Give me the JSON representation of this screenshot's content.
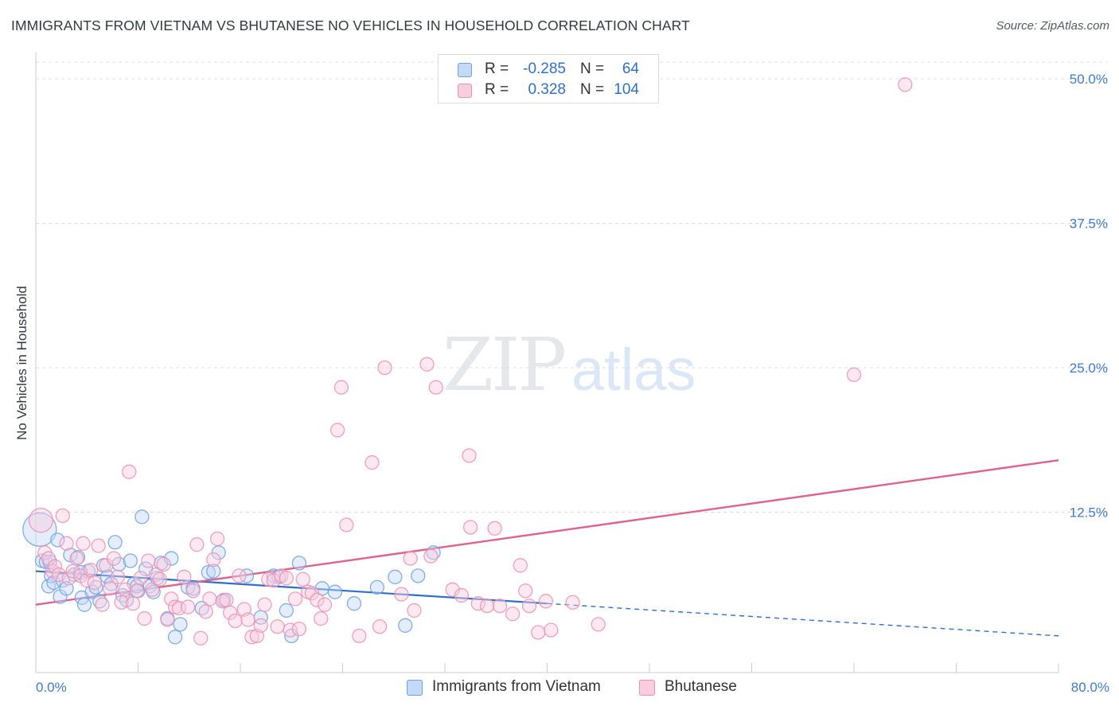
{
  "title": "IMMIGRANTS FROM VIETNAM VS BHUTANESE NO VEHICLES IN HOUSEHOLD CORRELATION CHART",
  "source": "Source: ZipAtlas.com",
  "watermark": {
    "part1": "ZIP",
    "part2": "atlas"
  },
  "legend": {
    "rows": [
      {
        "r_label": "R =",
        "r_value": "-0.285",
        "n_label": "N =",
        "n_value": "64"
      },
      {
        "r_label": "R =",
        "r_value": "0.328",
        "n_label": "N =",
        "n_value": "104"
      }
    ]
  },
  "colors": {
    "blue": "#6f9fe6",
    "blue_fill": "#c4d8f7",
    "blue_line": "#2f6fcc",
    "pink": "#ee8fb2",
    "pink_fill": "#f9cddd",
    "pink_line": "#e0628e",
    "axis_text": "#3f7ad2",
    "grid": "#d9dce2"
  },
  "chart_data": {
    "type": "scatter",
    "title": "IMMIGRANTS FROM VIETNAM VS BHUTANESE NO VEHICLES IN HOUSEHOLD CORRELATION CHART",
    "xlabel": "",
    "ylabel": "No Vehicles in Household",
    "xlim": [
      0,
      80
    ],
    "ylim": [
      0,
      52
    ],
    "x_tick_labels": [
      "0.0%",
      "80.0%"
    ],
    "y_ticks": [
      12.5,
      25.0,
      37.5,
      50.0
    ],
    "y_tick_labels": [
      "12.5%",
      "25.0%",
      "37.5%",
      "50.0%"
    ],
    "grid": "horizontal dashed",
    "legend_position": "bottom",
    "series": [
      {
        "name": "Immigrants from Vietnam",
        "color": "blue",
        "trend": {
          "x0": 0,
          "y0": 7.4,
          "x1": 40,
          "y1": 4.6,
          "dashed_to_x": 80,
          "dashed_to_y": 1.8
        },
        "points": [
          [
            0.3,
            11.0
          ],
          [
            0.5,
            8.3
          ],
          [
            0.8,
            8.2
          ],
          [
            1.0,
            6.1
          ],
          [
            1.2,
            7.0
          ],
          [
            1.4,
            6.4
          ],
          [
            1.7,
            10.1
          ],
          [
            1.9,
            5.2
          ],
          [
            2.1,
            6.6
          ],
          [
            2.4,
            5.9
          ],
          [
            2.7,
            8.8
          ],
          [
            3.0,
            7.1
          ],
          [
            3.3,
            8.6
          ],
          [
            3.6,
            5.1
          ],
          [
            3.8,
            4.5
          ],
          [
            4.1,
            7.4
          ],
          [
            4.4,
            5.6
          ],
          [
            4.7,
            6.0
          ],
          [
            5.0,
            4.8
          ],
          [
            5.3,
            7.9
          ],
          [
            5.6,
            6.9
          ],
          [
            5.9,
            6.3
          ],
          [
            6.2,
            9.9
          ],
          [
            6.5,
            8.0
          ],
          [
            6.8,
            5.3
          ],
          [
            7.1,
            4.9
          ],
          [
            7.4,
            8.3
          ],
          [
            7.7,
            6.3
          ],
          [
            8.0,
            5.7
          ],
          [
            8.3,
            12.1
          ],
          [
            8.6,
            7.6
          ],
          [
            8.9,
            6.1
          ],
          [
            9.2,
            5.6
          ],
          [
            9.5,
            6.8
          ],
          [
            9.8,
            8.1
          ],
          [
            10.3,
            3.3
          ],
          [
            10.6,
            8.5
          ],
          [
            10.9,
            1.7
          ],
          [
            11.3,
            2.8
          ],
          [
            11.9,
            6.0
          ],
          [
            12.3,
            5.9
          ],
          [
            13.0,
            4.2
          ],
          [
            13.5,
            7.3
          ],
          [
            13.9,
            7.4
          ],
          [
            14.3,
            9.0
          ],
          [
            14.7,
            4.9
          ],
          [
            16.5,
            7.0
          ],
          [
            17.6,
            3.4
          ],
          [
            18.6,
            7.0
          ],
          [
            19.0,
            6.9
          ],
          [
            19.6,
            4.0
          ],
          [
            20.0,
            1.8
          ],
          [
            20.6,
            8.1
          ],
          [
            22.4,
            5.9
          ],
          [
            23.4,
            5.6
          ],
          [
            24.9,
            4.6
          ],
          [
            26.7,
            6.0
          ],
          [
            28.1,
            6.9
          ],
          [
            28.9,
            2.7
          ],
          [
            29.9,
            7.0
          ],
          [
            31.1,
            9.0
          ],
          [
            1.1,
            8.2
          ],
          [
            3.5,
            7.3
          ],
          [
            7.9,
            6.1
          ]
        ],
        "sizes": {
          "0": 30
        }
      },
      {
        "name": "Bhutanese",
        "color": "pink",
        "trend": {
          "x0": 0,
          "y0": 4.5,
          "x1": 80,
          "y1": 17.0
        },
        "points": [
          [
            0.4,
            11.8
          ],
          [
            0.7,
            9.0
          ],
          [
            1.0,
            8.5
          ],
          [
            1.3,
            7.4
          ],
          [
            1.5,
            7.8
          ],
          [
            1.8,
            7.1
          ],
          [
            2.1,
            12.2
          ],
          [
            2.4,
            9.8
          ],
          [
            2.6,
            6.8
          ],
          [
            2.9,
            7.4
          ],
          [
            3.2,
            8.5
          ],
          [
            3.5,
            7.0
          ],
          [
            3.7,
            9.8
          ],
          [
            4.0,
            6.6
          ],
          [
            4.3,
            7.5
          ],
          [
            4.6,
            6.4
          ],
          [
            4.9,
            9.6
          ],
          [
            5.2,
            4.5
          ],
          [
            5.5,
            7.9
          ],
          [
            5.8,
            5.9
          ],
          [
            6.1,
            8.5
          ],
          [
            6.4,
            6.9
          ],
          [
            6.7,
            4.7
          ],
          [
            7.0,
            5.8
          ],
          [
            7.3,
            16.0
          ],
          [
            7.6,
            4.6
          ],
          [
            7.9,
            5.7
          ],
          [
            8.2,
            6.8
          ],
          [
            8.5,
            3.3
          ],
          [
            8.8,
            8.3
          ],
          [
            9.1,
            5.8
          ],
          [
            9.4,
            7.1
          ],
          [
            9.7,
            6.7
          ],
          [
            10.0,
            8.0
          ],
          [
            10.3,
            3.2
          ],
          [
            10.6,
            5.0
          ],
          [
            10.9,
            4.3
          ],
          [
            11.2,
            4.2
          ],
          [
            11.6,
            6.9
          ],
          [
            11.9,
            4.3
          ],
          [
            12.3,
            5.7
          ],
          [
            12.6,
            9.7
          ],
          [
            12.9,
            1.6
          ],
          [
            13.3,
            3.9
          ],
          [
            13.6,
            5.0
          ],
          [
            13.9,
            8.4
          ],
          [
            14.2,
            10.2
          ],
          [
            14.6,
            4.8
          ],
          [
            14.9,
            4.9
          ],
          [
            15.2,
            3.8
          ],
          [
            15.6,
            3.1
          ],
          [
            15.9,
            7.0
          ],
          [
            16.3,
            4.1
          ],
          [
            16.6,
            3.2
          ],
          [
            16.9,
            1.7
          ],
          [
            17.3,
            1.8
          ],
          [
            17.6,
            2.7
          ],
          [
            17.9,
            4.5
          ],
          [
            18.2,
            6.7
          ],
          [
            18.6,
            6.6
          ],
          [
            18.9,
            2.6
          ],
          [
            19.2,
            7.0
          ],
          [
            19.6,
            6.8
          ],
          [
            19.9,
            2.3
          ],
          [
            20.3,
            5.0
          ],
          [
            20.6,
            2.4
          ],
          [
            20.9,
            6.7
          ],
          [
            21.3,
            5.6
          ],
          [
            21.6,
            5.5
          ],
          [
            22.0,
            4.9
          ],
          [
            22.3,
            3.3
          ],
          [
            22.6,
            4.5
          ],
          [
            23.6,
            19.6
          ],
          [
            23.9,
            23.3
          ],
          [
            24.3,
            11.4
          ],
          [
            25.3,
            1.8
          ],
          [
            26.3,
            16.8
          ],
          [
            26.9,
            2.6
          ],
          [
            27.3,
            25.0
          ],
          [
            28.6,
            5.4
          ],
          [
            29.3,
            8.5
          ],
          [
            29.6,
            4.0
          ],
          [
            30.6,
            25.3
          ],
          [
            30.9,
            8.7
          ],
          [
            31.3,
            23.3
          ],
          [
            32.6,
            5.8
          ],
          [
            33.3,
            5.3
          ],
          [
            33.9,
            17.4
          ],
          [
            34.0,
            11.2
          ],
          [
            34.6,
            4.6
          ],
          [
            35.3,
            4.4
          ],
          [
            35.9,
            11.1
          ],
          [
            36.3,
            4.4
          ],
          [
            37.3,
            3.7
          ],
          [
            37.9,
            7.9
          ],
          [
            38.3,
            5.7
          ],
          [
            38.6,
            4.4
          ],
          [
            39.3,
            2.1
          ],
          [
            39.9,
            4.8
          ],
          [
            40.3,
            2.3
          ],
          [
            42.0,
            4.7
          ],
          [
            44.0,
            2.8
          ],
          [
            64.0,
            24.4
          ],
          [
            68.0,
            49.5
          ]
        ],
        "sizes": {
          "0": 18
        }
      }
    ]
  }
}
